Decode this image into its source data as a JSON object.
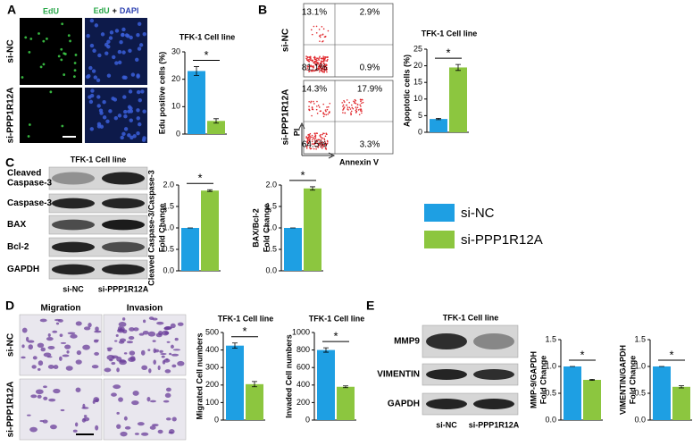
{
  "panel_letters": [
    "A",
    "B",
    "C",
    "D",
    "E"
  ],
  "panel_a": {
    "headers": [
      "EdU",
      [
        "EdU",
        "+",
        "DAPI"
      ]
    ],
    "rows": [
      "si-NC",
      "si-PPP1R12A"
    ]
  },
  "panel_b": {
    "rows": [
      "si-NC",
      "si-PPP1R12A"
    ],
    "quadrants": [
      [
        "13.1%",
        "2.9%",
        "81.1%",
        "0.9%"
      ],
      [
        "14.3%",
        "17.9%",
        "64.5%",
        "3.3%"
      ]
    ],
    "y_axis": "PI",
    "x_axis": "Annexin V"
  },
  "panel_c": {
    "title": "TFK-1 Cell line",
    "bands": [
      [
        "Cleaved",
        "Caspase-3"
      ],
      [
        "Caspase-3"
      ],
      [
        "BAX"
      ],
      [
        "Bcl-2"
      ],
      [
        "GAPDH"
      ]
    ],
    "lanes": [
      "si-NC",
      "si-PPP1R12A"
    ]
  },
  "panel_d": {
    "columns": [
      "Migration",
      "Invasion"
    ],
    "rows": [
      "si-NC",
      "si-PPP1R12A"
    ]
  },
  "panel_e": {
    "title": "TFK-1 Cell line",
    "bands": [
      "MMP9",
      "VIMENTIN",
      "GAPDH"
    ],
    "lanes": [
      "si-NC",
      "si-PPP1R12A"
    ]
  },
  "legend": {
    "items": [
      {
        "name": "si-NC",
        "color": "#1e9fe3"
      },
      {
        "name": "si-PPP1R12A",
        "color": "#8cc63f"
      }
    ]
  },
  "chart_data": [
    {
      "type": "bar",
      "title": "TFK-1 Cell line",
      "ylabel": [
        "Edu positive cells (%)"
      ],
      "values": [
        23,
        4.8
      ],
      "errors": [
        1.6,
        0.8
      ],
      "ylim": [
        0,
        30
      ],
      "yticks": [
        0,
        10,
        20,
        30
      ],
      "significance": "*"
    },
    {
      "type": "bar",
      "title": "TFK-1 Cell line",
      "ylabel": [
        "Apoptotic cells (%)"
      ],
      "values": [
        4,
        19.5
      ],
      "errors": [
        0.2,
        0.9
      ],
      "ylim": [
        0,
        25
      ],
      "yticks": [
        0,
        5,
        10,
        15,
        20,
        25
      ],
      "significance": "*"
    },
    {
      "type": "bar",
      "ylabel": [
        "Cleaved Caspase-3/Caspase-3",
        "Fold Change"
      ],
      "values": [
        1,
        1.87
      ],
      "errors": [
        0,
        0.02
      ],
      "ylim": [
        0,
        2
      ],
      "yticks": [
        {
          "value": 0,
          "label": "0.0"
        },
        0.5,
        {
          "value": 1,
          "label": "1.0"
        },
        1.5,
        {
          "value": 2,
          "label": "2.0"
        }
      ],
      "significance": "*"
    },
    {
      "type": "bar",
      "ylabel": [
        "BAX/Bcl-2",
        "Fold Change"
      ],
      "values": [
        1,
        1.92
      ],
      "errors": [
        0,
        0.04
      ],
      "ylim": [
        0,
        2
      ],
      "yticks": [
        {
          "value": 0,
          "label": "0.0"
        },
        0.5,
        {
          "value": 1,
          "label": "1.0"
        },
        1.5,
        {
          "value": 2,
          "label": "2.0"
        }
      ],
      "significance": "*"
    },
    {
      "type": "bar",
      "title": "TFK-1 Cell line",
      "ylabel": [
        "Migrated Cell numbers"
      ],
      "values": [
        425,
        205
      ],
      "errors": [
        15,
        15
      ],
      "ylim": [
        0,
        500
      ],
      "yticks": [
        0,
        100,
        200,
        300,
        400,
        500
      ],
      "significance": "*"
    },
    {
      "type": "bar",
      "title": "TFK-1 Cell line",
      "ylabel": [
        "Invaded Cell numbers"
      ],
      "values": [
        800,
        380
      ],
      "errors": [
        25,
        10
      ],
      "ylim": [
        0,
        1000
      ],
      "yticks": [
        0,
        200,
        400,
        600,
        800,
        1000
      ],
      "significance": "*"
    },
    {
      "type": "bar",
      "ylabel": [
        "MMP-9/GAPDH",
        "Fold Change"
      ],
      "values": [
        1,
        0.75
      ],
      "errors": [
        0,
        0.01
      ],
      "ylim": [
        0,
        1.5
      ],
      "yticks": [
        {
          "value": 0,
          "label": "0.0"
        },
        0.5,
        {
          "value": 1,
          "label": "1.0"
        },
        1.5
      ],
      "significance": "*"
    },
    {
      "type": "bar",
      "ylabel": [
        "VIMENTIN/GAPDH",
        "Fold Change"
      ],
      "values": [
        1,
        0.62
      ],
      "errors": [
        0,
        0.02
      ],
      "ylim": [
        0,
        1.5
      ],
      "yticks": [
        {
          "value": 0,
          "label": "0.0"
        },
        0.5,
        {
          "value": 1,
          "label": "1.0"
        },
        1.5
      ],
      "significance": "*"
    }
  ]
}
